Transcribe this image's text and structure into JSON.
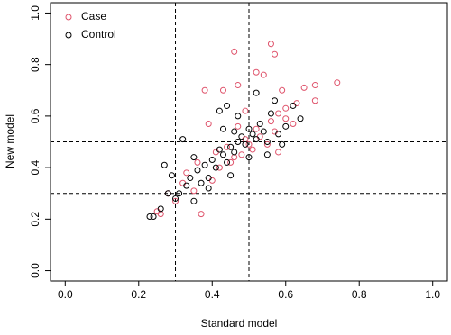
{
  "chart_data": {
    "type": "scatter",
    "x_label": "Standard model",
    "y_label": "New model",
    "xlim": [
      -0.04,
      1.04
    ],
    "ylim": [
      -0.04,
      1.04
    ],
    "xticks": [
      {
        "value": 0,
        "label": "0.0"
      },
      {
        "value": 0.2,
        "label": "0.2"
      },
      {
        "value": 0.4,
        "label": "0.4"
      },
      {
        "value": 0.6,
        "label": "0.6"
      },
      {
        "value": 0.8,
        "label": "0.8"
      },
      {
        "value": 1,
        "label": "1.0"
      }
    ],
    "yticks": [
      {
        "value": 0,
        "label": "0.0"
      },
      {
        "value": 0.2,
        "label": "0.2"
      },
      {
        "value": 0.4,
        "label": "0.4"
      },
      {
        "value": 0.6,
        "label": "0.6"
      },
      {
        "value": 0.8,
        "label": "0.8"
      },
      {
        "value": 1,
        "label": "1.0"
      }
    ],
    "vlines": [
      0.3,
      0.5
    ],
    "hlines": [
      0.3,
      0.5
    ],
    "legend": "top-left",
    "series": [
      {
        "name": "Case",
        "color": "#df536b",
        "x": [
          0.46,
          0.56,
          0.57,
          0.38,
          0.43,
          0.47,
          0.52,
          0.54,
          0.59,
          0.65,
          0.68,
          0.74,
          0.68,
          0.63,
          0.37,
          0.26,
          0.25,
          0.33,
          0.41,
          0.45,
          0.49,
          0.52,
          0.55,
          0.58,
          0.6,
          0.62,
          0.47,
          0.44,
          0.35,
          0.3,
          0.4,
          0.42,
          0.48,
          0.5,
          0.53,
          0.56,
          0.57,
          0.6,
          0.51,
          0.46,
          0.39,
          0.49,
          0.58,
          0.32,
          0.36,
          0.28
        ],
        "values": [
          0.85,
          0.88,
          0.84,
          0.7,
          0.7,
          0.72,
          0.77,
          0.76,
          0.7,
          0.71,
          0.72,
          0.73,
          0.66,
          0.65,
          0.22,
          0.22,
          0.23,
          0.38,
          0.46,
          0.42,
          0.51,
          0.55,
          0.49,
          0.61,
          0.59,
          0.57,
          0.56,
          0.48,
          0.31,
          0.27,
          0.35,
          0.4,
          0.45,
          0.49,
          0.52,
          0.58,
          0.54,
          0.63,
          0.47,
          0.44,
          0.57,
          0.62,
          0.46,
          0.34,
          0.42,
          0.3
        ]
      },
      {
        "name": "Control",
        "color": "#000000",
        "x": [
          0.23,
          0.24,
          0.26,
          0.27,
          0.29,
          0.3,
          0.31,
          0.32,
          0.33,
          0.34,
          0.35,
          0.36,
          0.37,
          0.38,
          0.39,
          0.4,
          0.41,
          0.42,
          0.43,
          0.44,
          0.45,
          0.46,
          0.47,
          0.48,
          0.49,
          0.5,
          0.51,
          0.52,
          0.52,
          0.53,
          0.54,
          0.55,
          0.56,
          0.57,
          0.58,
          0.6,
          0.62,
          0.64,
          0.42,
          0.44,
          0.47,
          0.39,
          0.35,
          0.45,
          0.5,
          0.55,
          0.59,
          0.43,
          0.28,
          0.46
        ],
        "values": [
          0.21,
          0.21,
          0.24,
          0.41,
          0.37,
          0.28,
          0.3,
          0.51,
          0.33,
          0.36,
          0.44,
          0.39,
          0.34,
          0.41,
          0.36,
          0.43,
          0.4,
          0.47,
          0.45,
          0.42,
          0.48,
          0.46,
          0.5,
          0.52,
          0.49,
          0.55,
          0.53,
          0.69,
          0.51,
          0.57,
          0.54,
          0.5,
          0.61,
          0.66,
          0.53,
          0.56,
          0.64,
          0.59,
          0.62,
          0.64,
          0.6,
          0.32,
          0.27,
          0.37,
          0.44,
          0.45,
          0.49,
          0.55,
          0.3,
          0.54
        ]
      }
    ]
  }
}
